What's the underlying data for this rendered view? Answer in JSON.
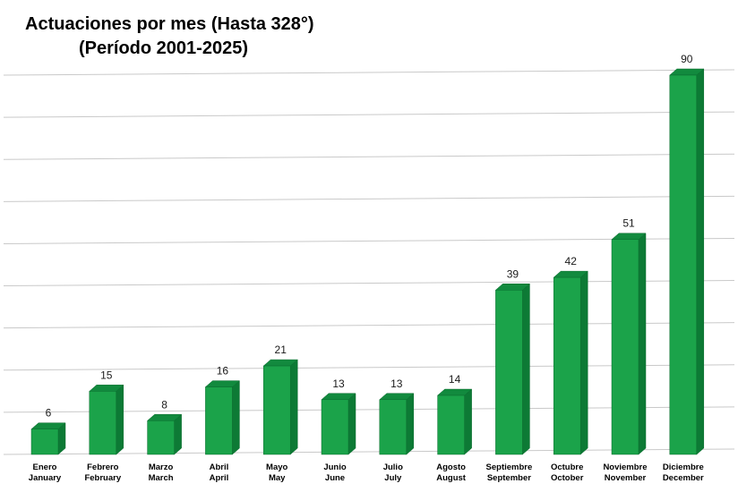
{
  "title": {
    "line1": "Actuaciones por mes (Hasta 328°)",
    "line2": "(Período 2001-2025)"
  },
  "chart_data": {
    "type": "bar",
    "title": "Actuaciones por mes (Hasta 328°) (Período 2001-2025)",
    "categories": [
      {
        "es": "Enero",
        "en": "January"
      },
      {
        "es": "Febrero",
        "en": "February"
      },
      {
        "es": "Marzo",
        "en": "March"
      },
      {
        "es": "Abril",
        "en": "April"
      },
      {
        "es": "Mayo",
        "en": "May"
      },
      {
        "es": "Junio",
        "en": "June"
      },
      {
        "es": "Julio",
        "en": "July"
      },
      {
        "es": "Agosto",
        "en": "August"
      },
      {
        "es": "Septiembre",
        "en": "September"
      },
      {
        "es": "Octubre",
        "en": "October"
      },
      {
        "es": "Noviembre",
        "en": "November"
      },
      {
        "es": "Diciembre",
        "en": "December"
      }
    ],
    "values": [
      6,
      15,
      8,
      16,
      21,
      13,
      13,
      14,
      39,
      42,
      51,
      90
    ],
    "xlabel": "",
    "ylabel": "",
    "ylim": [
      0,
      90
    ],
    "grid_step": 10,
    "grid": true,
    "legend": false,
    "style_3d": true,
    "colors": {
      "bar_front": "#1ba34a",
      "bar_top": "#128a3e",
      "bar_side": "#0d7a35",
      "bar_stroke": "#0a6b2e",
      "gridline": "#c9c9c9",
      "value_label": "#1a1a1a",
      "category_label": "#000000",
      "background": "#ffffff"
    }
  }
}
